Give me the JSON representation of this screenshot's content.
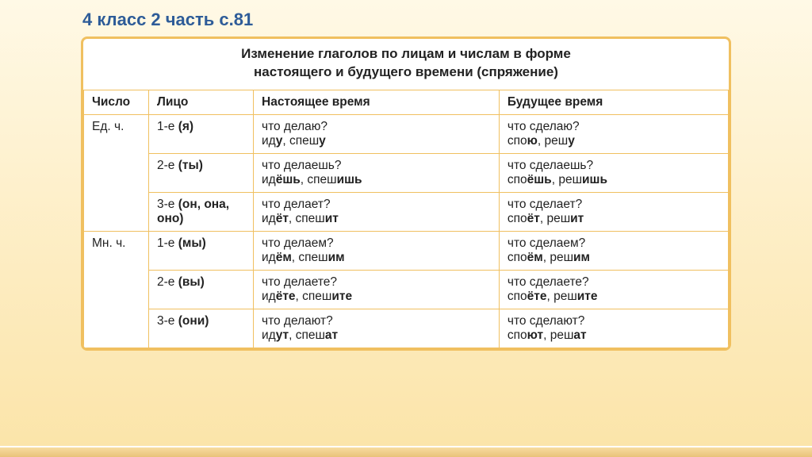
{
  "page_title": "4 класс 2 часть с.81",
  "caption_line1": "Изменение глаголов по лицам и числам в форме",
  "caption_line2": "настоящего и будущего времени (спряжение)",
  "columns": [
    "Число",
    "Лицо",
    "Настоящее время",
    "Будущее время"
  ],
  "colors": {
    "title": "#2e5c98",
    "table_border": "#f0c060",
    "bg_top": "#fff9e6",
    "bg_bottom": "#fbe4a8"
  },
  "groups": [
    {
      "number": "Ед. ч.",
      "rows": [
        {
          "person_prefix": "1-е ",
          "person_paren": "(я)",
          "present": {
            "q": "что делаю?",
            "ex_parts": [
              "ид",
              "у",
              ",  спеш",
              "у"
            ]
          },
          "future": {
            "q": "что сделаю?",
            "ex_parts": [
              "спо",
              "ю",
              ",  реш",
              "у"
            ]
          }
        },
        {
          "person_prefix": "2-е ",
          "person_paren": "(ты)",
          "present": {
            "q": "что делаешь?",
            "ex_parts": [
              "ид",
              "ёшь",
              ",  спеш",
              "ишь"
            ]
          },
          "future": {
            "q": "что сделаешь?",
            "ex_parts": [
              "спо",
              "ёшь",
              ",  реш",
              "ишь"
            ]
          }
        },
        {
          "person_prefix": "3-е ",
          "person_paren": "(он, она, оно)",
          "present": {
            "q": "что делает?",
            "ex_parts": [
              "ид",
              "ёт",
              ",  спеш",
              "ит"
            ]
          },
          "future": {
            "q": "что сделает?",
            "ex_parts": [
              "спо",
              "ёт",
              ",  реш",
              "ит"
            ]
          }
        }
      ]
    },
    {
      "number": "Мн. ч.",
      "rows": [
        {
          "person_prefix": "1-е ",
          "person_paren": "(мы)",
          "present": {
            "q": "что делаем?",
            "ex_parts": [
              "ид",
              "ём",
              ",  спеш",
              "им"
            ]
          },
          "future": {
            "q": "что сделаем?",
            "ex_parts": [
              "спо",
              "ём",
              ",  реш",
              "им"
            ]
          }
        },
        {
          "person_prefix": "2-е ",
          "person_paren": "(вы)",
          "present": {
            "q": "что делаете?",
            "ex_parts": [
              "ид",
              "ёте",
              ",  спеш",
              "ите"
            ]
          },
          "future": {
            "q": "что сделаете?",
            "ex_parts": [
              "спо",
              "ёте",
              ",  реш",
              "ите"
            ]
          }
        },
        {
          "person_prefix": "3-е ",
          "person_paren": "(они)",
          "present": {
            "q": "что делают?",
            "ex_parts": [
              "ид",
              "ут",
              ",  спеш",
              "ат"
            ]
          },
          "future": {
            "q": "что сделают?",
            "ex_parts": [
              "спо",
              "ют",
              ",  реш",
              "ат"
            ]
          }
        }
      ]
    }
  ]
}
